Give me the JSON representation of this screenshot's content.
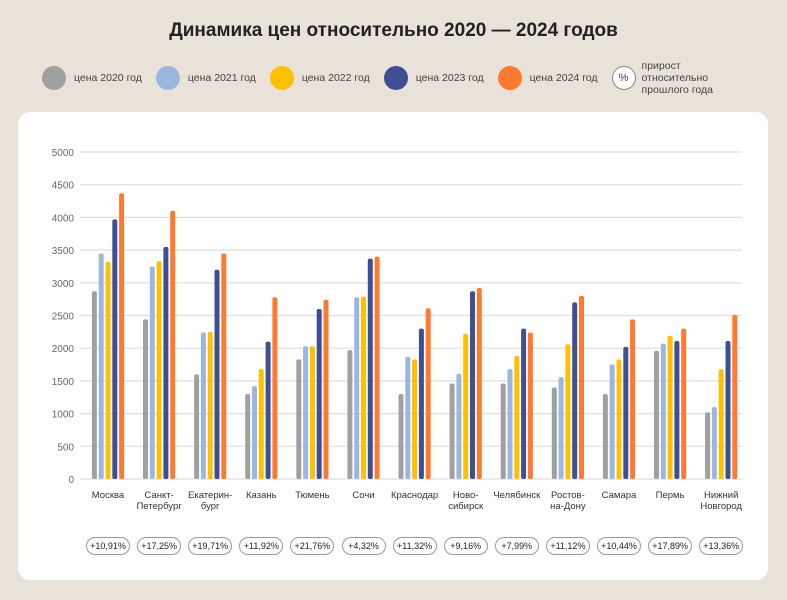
{
  "title": "Динамика цен относительно 2020 — 2024 годов",
  "legend": {
    "pct_symbol": "%",
    "pct_label": "прирост относительно прошлого года"
  },
  "chart_data": {
    "type": "bar",
    "title": "Динамика цен относительно 2020 — 2024 годов",
    "ylim": [
      0,
      5000
    ],
    "yticks": [
      0,
      500,
      1000,
      1500,
      2000,
      2500,
      3000,
      3500,
      4000,
      4500,
      5000
    ],
    "grid": true,
    "legend_position": "top",
    "categories": [
      "Москва",
      "Санкт-Петербург",
      "Екатерин-бург",
      "Казань",
      "Тюмень",
      "Сочи",
      "Краснодар",
      "Ново-сибирск",
      "Челябинск",
      "Ростов-на-Дону",
      "Самара",
      "Пермь",
      "Нижний Новгород"
    ],
    "category_lines": [
      [
        "Москва"
      ],
      [
        "Санкт-",
        "Петербург"
      ],
      [
        "Екатерин-",
        "бург"
      ],
      [
        "Казань"
      ],
      [
        "Тюмень"
      ],
      [
        "Сочи"
      ],
      [
        "Краснодар"
      ],
      [
        "Ново-",
        "сибирск"
      ],
      [
        "Челябинск"
      ],
      [
        "Ростов-",
        "на-Дону"
      ],
      [
        "Самара"
      ],
      [
        "Пермь"
      ],
      [
        "Нижний",
        "Новгород"
      ]
    ],
    "series": [
      {
        "name": "цена 2020 год",
        "color": "#a0a0a0",
        "values": [
          2870,
          2440,
          1600,
          1300,
          1830,
          1970,
          1300,
          1460,
          1460,
          1400,
          1300,
          1960,
          1020
        ]
      },
      {
        "name": "цена 2021 год",
        "color": "#9bb7e0",
        "values": [
          3450,
          3250,
          2240,
          1420,
          2030,
          2780,
          1870,
          1610,
          1680,
          1560,
          1750,
          2070,
          1100
        ]
      },
      {
        "name": "цена 2022 год",
        "color": "#ffc000",
        "values": [
          3320,
          3330,
          2250,
          1680,
          2030,
          2790,
          1830,
          2220,
          1880,
          2060,
          1830,
          2190,
          1680
        ]
      },
      {
        "name": "цена 2023 год",
        "color": "#3f4f94",
        "values": [
          3970,
          3550,
          3200,
          2100,
          2600,
          3370,
          2300,
          2870,
          2300,
          2700,
          2020,
          2110,
          2110
        ]
      },
      {
        "name": "цена 2024 год",
        "color": "#ff7a2e",
        "values": [
          4370,
          4100,
          3450,
          2780,
          2740,
          3400,
          2610,
          2920,
          2240,
          2800,
          2440,
          2300,
          2510
        ]
      }
    ],
    "growth": [
      "+10,91%",
      "+17,25%",
      "+19,71%",
      "+11,92%",
      "+21,76%",
      "+4,32%",
      "+11,32%",
      "+9,16%",
      "+7,99%",
      "+11,12%",
      "+10,44%",
      "+17,89%",
      "+13,36%"
    ]
  }
}
